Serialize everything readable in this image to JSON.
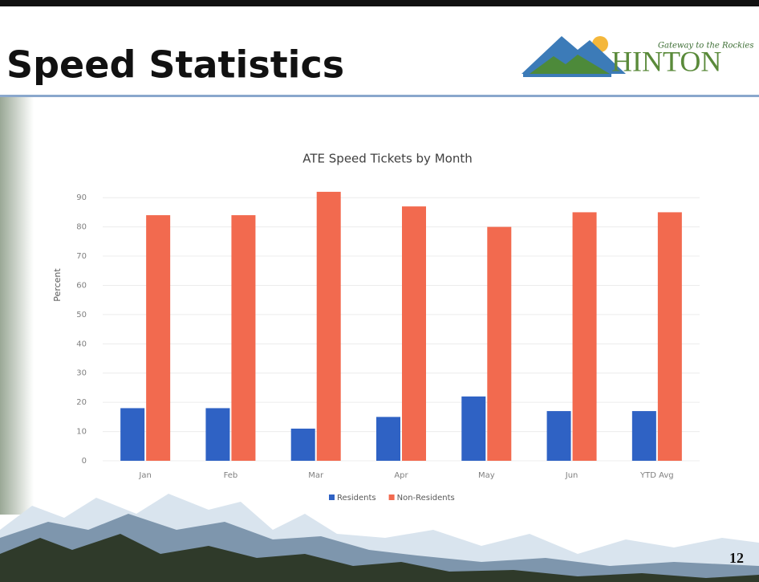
{
  "slide": {
    "title": "Speed Statistics",
    "logo_name": "HINTON",
    "logo_tagline": "Gateway to the Rockies",
    "page_number": "12"
  },
  "chart_data": {
    "type": "bar",
    "title": "ATE Speed Tickets by Month",
    "y_label": "Percent",
    "categories": [
      "Jan",
      "Feb",
      "Mar",
      "Apr",
      "May",
      "Jun",
      "YTD Avg"
    ],
    "series": [
      {
        "name": "Residents",
        "color": "#2f62c4",
        "values": [
          18,
          18,
          11,
          15,
          22,
          17,
          17
        ]
      },
      {
        "name": "Non-Residents",
        "color": "#f26a4f",
        "values": [
          84,
          84,
          92,
          87,
          80,
          85,
          85
        ]
      }
    ],
    "ylim": [
      0,
      95
    ],
    "yticks": [
      0,
      10,
      20,
      30,
      40,
      50,
      60,
      70,
      80,
      90
    ],
    "grid": true,
    "legend": "bottom"
  }
}
